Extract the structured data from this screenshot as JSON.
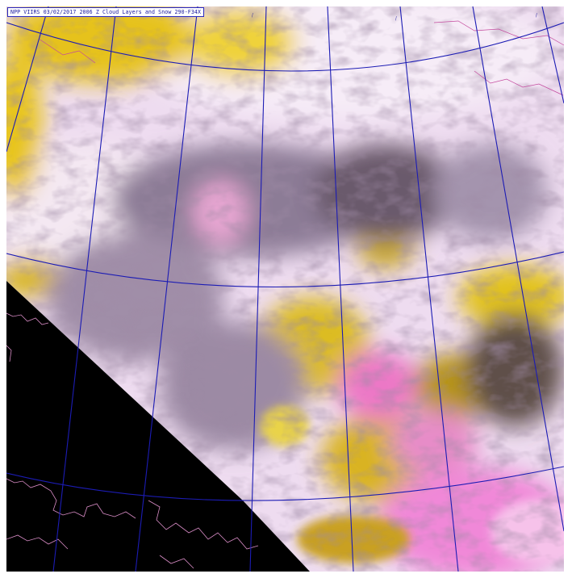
{
  "map": {
    "title": "NPP VIIRS 03/02/2017 2006 Z Cloud Layers and Snow 290-F34X",
    "graticule_color": "#1c1cb4",
    "coastline_color": "#d98cc6",
    "no_data_color": "#000000"
  }
}
